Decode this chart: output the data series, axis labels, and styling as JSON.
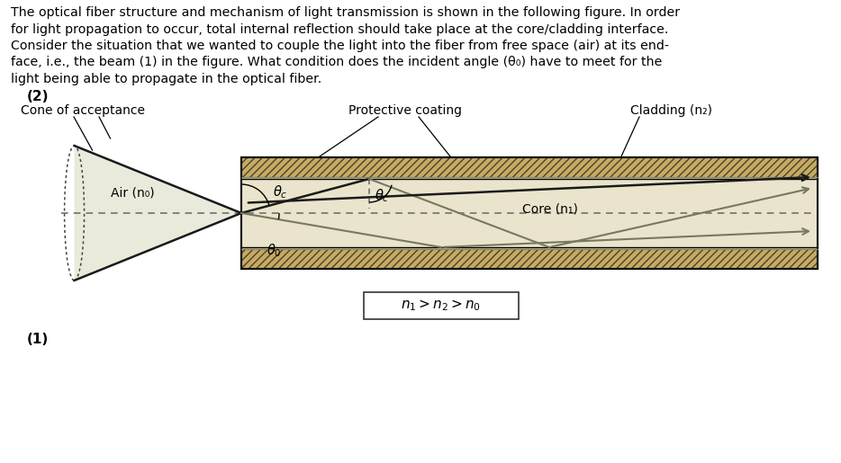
{
  "bg_color": "#ffffff",
  "text_color": "#000000",
  "paragraph_lines": [
    "The optical fiber structure and mechanism of light transmission is shown in the following figure. In order",
    "for light propagation to occur, total internal reflection should take place at the core/cladding interface.",
    "Consider the situation that we wanted to couple the light into the fiber from free space (air) at its end-",
    "face, i.e., the beam (1) in the figure. What condition does the incident angle (θ₀) have to meet for the",
    "light being able to propagate in the optical fiber."
  ],
  "label_cone": "Cone of acceptance",
  "label_protective": "Protective coating",
  "label_cladding": "Cladding (n₂)",
  "label_air": "Air (n₀)",
  "label_core": "Core (n₁)",
  "label_2": "(2)",
  "label_1": "(1)",
  "label_equation": "n₁ > n₂ > n₀",
  "hatch_color": "#b8a060",
  "hatch_face": "#c8aa60",
  "clad_inner_color": "#d8cfa0",
  "core_color": "#eae4cc",
  "cone_fill": "#eaeadc",
  "ray_dark": "#1a1a1a",
  "ray_gray": "#787860",
  "dash_color": "#666666"
}
